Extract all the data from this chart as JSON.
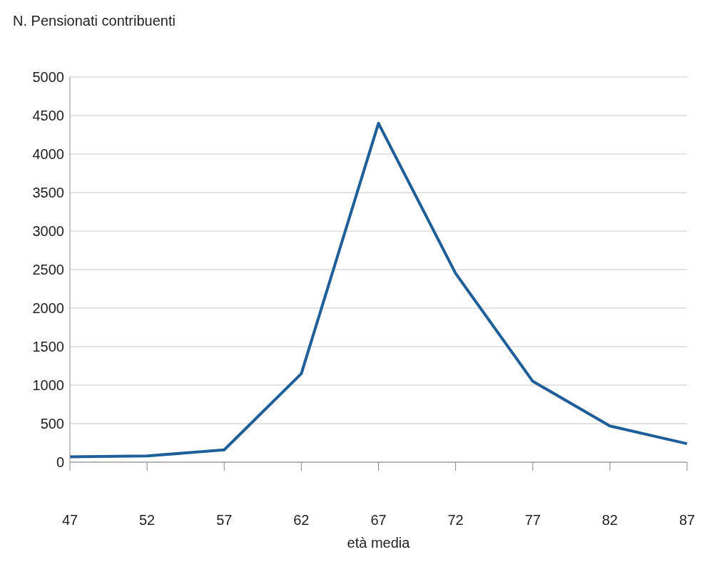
{
  "chart_data": {
    "type": "line",
    "title": "N. Pensionati contribuenti",
    "xlabel": "età media",
    "categories": [
      "47",
      "52",
      "57",
      "62",
      "67",
      "72",
      "77",
      "82",
      "87"
    ],
    "series": [
      {
        "color": "#1f5f99",
        "values": [
          70,
          80,
          160,
          1150,
          4400,
          2450,
          1050,
          470,
          240
        ]
      }
    ],
    "ylim": [
      0,
      5000
    ],
    "yticks": [
      0,
      500,
      1000,
      1500,
      2000,
      2500,
      3000,
      3500,
      4000,
      4500,
      5000
    ],
    "grid": "y",
    "legend": false,
    "marker": "none",
    "line_style": "solid"
  }
}
